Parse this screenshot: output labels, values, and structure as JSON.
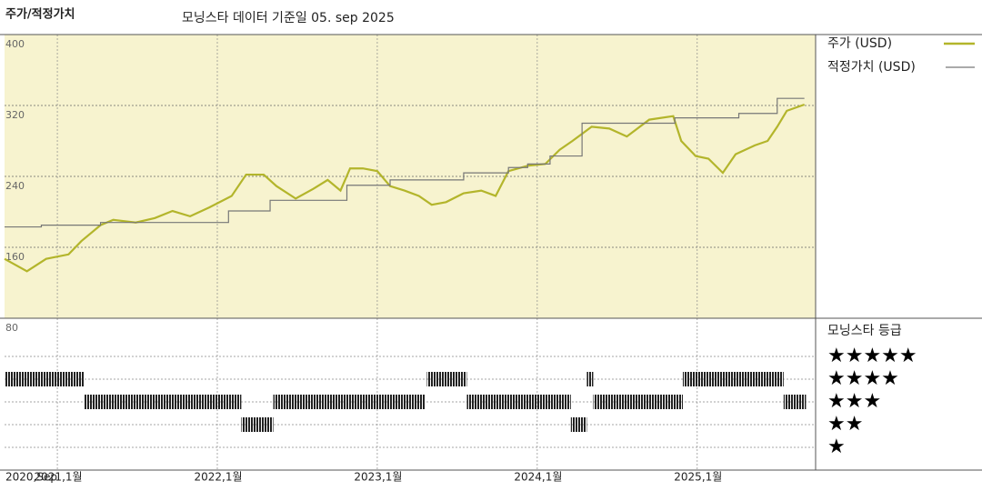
{
  "chart_data": [
    {
      "type": "line",
      "title": "주가/적정가치",
      "subtitle": "모닝스타 데이터 기준일 05. sep 2025",
      "xlim": [
        2020.67,
        2025.74
      ],
      "xticks": [
        {
          "value": 2020.67,
          "label": "2020,Sep"
        },
        {
          "value": 2021,
          "label": "2021,1월"
        },
        {
          "value": 2022,
          "label": "2022,1월"
        },
        {
          "value": 2023,
          "label": "2023,1월"
        },
        {
          "value": 2024,
          "label": "2024,1월"
        },
        {
          "value": 2025,
          "label": "2025,1월"
        }
      ],
      "ylim": [
        80,
        400
      ],
      "yticks": [
        400,
        320,
        240,
        160,
        80
      ],
      "grid": true,
      "series": [
        {
          "name": "주가 (USD)",
          "color": "#b3b52b",
          "step": false,
          "x": [
            2020.67,
            2020.81,
            2020.93,
            2021.07,
            2021.15,
            2021.27,
            2021.35,
            2021.49,
            2021.61,
            2021.72,
            2021.83,
            2021.95,
            2022.09,
            2022.18,
            2022.29,
            2022.37,
            2022.49,
            2022.6,
            2022.69,
            2022.77,
            2022.83,
            2022.91,
            2023.0,
            2023.08,
            2023.17,
            2023.26,
            2023.34,
            2023.43,
            2023.54,
            2023.65,
            2023.74,
            2023.82,
            2023.94,
            2024.05,
            2024.14,
            2024.22,
            2024.34,
            2024.45,
            2024.56,
            2024.7,
            2024.85,
            2024.9,
            2024.99,
            2025.07,
            2025.16,
            2025.24,
            2025.36,
            2025.44,
            2025.5,
            2025.56,
            2025.67
          ],
          "values": [
            147,
            133,
            147,
            152,
            167,
            185,
            191,
            188,
            193,
            201,
            195,
            205,
            218,
            242,
            242,
            229,
            215,
            226,
            236,
            224,
            249,
            249,
            246,
            229,
            224,
            218,
            208,
            211,
            221,
            224,
            218,
            246,
            252,
            254,
            270,
            280,
            296,
            294,
            285,
            304,
            308,
            280,
            263,
            260,
            244,
            265,
            275,
            280,
            296,
            314,
            321
          ]
        },
        {
          "name": "적정가치 (USD)",
          "color": "#777777",
          "step": true,
          "x": [
            2020.67,
            2020.9,
            2021.27,
            2022.07,
            2022.33,
            2022.81,
            2023.08,
            2023.54,
            2023.82,
            2023.94,
            2024.08,
            2024.28,
            2024.86,
            2025.26,
            2025.5,
            2025.67
          ],
          "values": [
            183,
            185,
            188,
            201,
            213,
            230,
            236,
            244,
            250,
            254,
            263,
            300,
            306,
            311,
            328,
            328
          ]
        }
      ]
    },
    {
      "type": "gantt",
      "title": "모닝스타 등급",
      "rows": [
        "★★★★★",
        "★★★★",
        "★★★",
        "★★",
        "★"
      ],
      "segments": [
        {
          "start": 2020.67,
          "end": 2021.17,
          "stars": 4
        },
        {
          "start": 2021.17,
          "end": 2022.15,
          "stars": 3
        },
        {
          "start": 2022.15,
          "end": 2022.35,
          "stars": 2
        },
        {
          "start": 2022.35,
          "end": 2023.3,
          "stars": 3
        },
        {
          "start": 2023.31,
          "end": 2023.56,
          "stars": 4
        },
        {
          "start": 2023.56,
          "end": 2024.21,
          "stars": 3
        },
        {
          "start": 2024.21,
          "end": 2024.31,
          "stars": 2
        },
        {
          "start": 2024.31,
          "end": 2024.35,
          "stars": 4
        },
        {
          "start": 2024.35,
          "end": 2024.91,
          "stars": 3
        },
        {
          "start": 2024.91,
          "end": 2025.54,
          "stars": 4
        },
        {
          "start": 2025.54,
          "end": 2025.68,
          "stars": 3
        }
      ]
    }
  ]
}
